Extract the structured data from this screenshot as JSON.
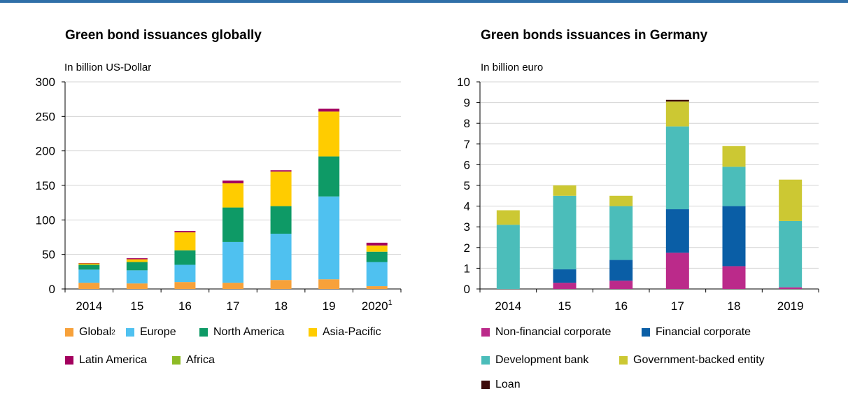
{
  "chart_data": [
    {
      "type": "bar",
      "stacked": true,
      "title": "Green bond issuances globally",
      "ylabel": "In billion US-Dollar",
      "ylim": [
        0,
        300
      ],
      "yticks": [
        0,
        50,
        100,
        150,
        200,
        250,
        300
      ],
      "categories": [
        "2014",
        "15",
        "16",
        "17",
        "18",
        "19",
        "2020"
      ],
      "category_sup": [
        "",
        "",
        "",
        "",
        "",
        "",
        "1"
      ],
      "grid": true,
      "legend_position": "bottom",
      "series": [
        {
          "name": "Global",
          "name_sup": "2",
          "color": "#f7a13a",
          "values": [
            9,
            8,
            10,
            9,
            13,
            14,
            4
          ]
        },
        {
          "name": "Europe",
          "color": "#4fc1f0",
          "values": [
            19,
            19,
            25,
            59,
            67,
            120,
            35
          ]
        },
        {
          "name": "North America",
          "color": "#0e9a66",
          "values": [
            7,
            12,
            21,
            50,
            40,
            58,
            15
          ]
        },
        {
          "name": "Asia-Pacific",
          "color": "#ffcc00",
          "values": [
            2,
            4,
            26,
            35,
            50,
            65,
            9
          ]
        },
        {
          "name": "Latin America",
          "color": "#a3005e",
          "values": [
            0.5,
            1.5,
            2,
            4,
            2,
            4,
            4
          ]
        },
        {
          "name": "Africa",
          "color": "#8dbb25",
          "values": [
            0,
            0,
            0,
            0,
            0,
            0,
            0
          ]
        }
      ]
    },
    {
      "type": "bar",
      "stacked": true,
      "title": "Green bonds issuances in Germany",
      "ylabel": "In billion euro",
      "ylim": [
        0,
        10
      ],
      "yticks": [
        0,
        1,
        2,
        3,
        4,
        5,
        6,
        7,
        8,
        9,
        10
      ],
      "categories": [
        "2014",
        "15",
        "16",
        "17",
        "18",
        "2019"
      ],
      "grid": true,
      "legend_position": "bottom",
      "series": [
        {
          "name": "Non-financial corporate",
          "color": "#bb2a8a",
          "values": [
            0,
            0.3,
            0.4,
            1.75,
            1.1,
            0.08
          ]
        },
        {
          "name": "Financial corporate",
          "color": "#0a5ea6",
          "values": [
            0,
            0.65,
            1.0,
            2.1,
            2.9,
            0
          ]
        },
        {
          "name": "Development bank",
          "color": "#4bbdba",
          "values": [
            3.1,
            3.55,
            2.6,
            4.0,
            1.9,
            3.2
          ]
        },
        {
          "name": "Government-backed entity",
          "color": "#ccc833",
          "values": [
            0.7,
            0.5,
            0.5,
            1.2,
            1.0,
            2.0
          ]
        },
        {
          "name": "Loan",
          "color": "#3d0a0a",
          "values": [
            0,
            0,
            0,
            0.08,
            0,
            0
          ]
        }
      ]
    }
  ]
}
